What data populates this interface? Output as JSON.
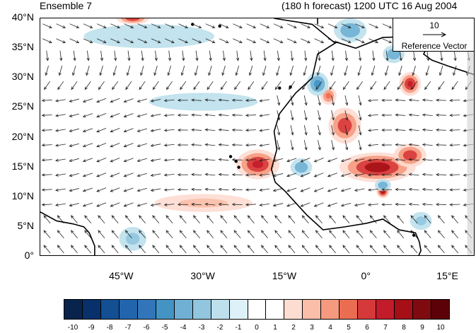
{
  "header": {
    "ensemble": "Ensemble 7",
    "forecast": "(180 h forecast) 1200 UTC 16 Aug 2004"
  },
  "axes": {
    "y_ticks": [
      {
        "label": "40°N",
        "lat": 40
      },
      {
        "label": "35°N",
        "lat": 35
      },
      {
        "label": "30°N",
        "lat": 30
      },
      {
        "label": "25°N",
        "lat": 25
      },
      {
        "label": "20°N",
        "lat": 20
      },
      {
        "label": "15°N",
        "lat": 15
      },
      {
        "label": "10°N",
        "lat": 10
      },
      {
        "label": "5°N",
        "lat": 5
      },
      {
        "label": "0°",
        "lat": 0
      }
    ],
    "x_ticks": [
      {
        "label": "45°W",
        "lon": -45
      },
      {
        "label": "30°W",
        "lon": -30
      },
      {
        "label": "15°W",
        "lon": -15
      },
      {
        "label": "0°",
        "lon": 0
      },
      {
        "label": "15°E",
        "lon": 15
      }
    ],
    "lon_range": [
      -60,
      20
    ],
    "lat_range": [
      0,
      40
    ]
  },
  "reference_vector": {
    "value": "10",
    "label": "Reference Vector"
  },
  "colorbar": {
    "labels": [
      "-10",
      "-9",
      "-8",
      "-7",
      "-6",
      "-5",
      "-4",
      "-3",
      "-2",
      "-1",
      "0",
      "1",
      "2",
      "3",
      "4",
      "5",
      "6",
      "7",
      "8",
      "9",
      "10"
    ],
    "colors": [
      "#08244d",
      "#08306b",
      "#134f93",
      "#2166ac",
      "#3276b9",
      "#4393c3",
      "#6fb0d4",
      "#92c5de",
      "#bde0ec",
      "#def1f8",
      "#ffffff",
      "#ffffff",
      "#fddcd2",
      "#fbbfa9",
      "#f69a7f",
      "#ea6d52",
      "#d6393a",
      "#c21c2a",
      "#a50f15",
      "#7f0b10",
      "#5a0208"
    ]
  },
  "shaded_regions": [
    {
      "lon": -20,
      "lat": 15.5,
      "rx": 4,
      "ry": 2.5,
      "value": 7
    },
    {
      "lon": 2,
      "lat": 15,
      "rx": 7,
      "ry": 2.5,
      "value": 8
    },
    {
      "lon": 8,
      "lat": 17,
      "rx": 3,
      "ry": 2,
      "value": 6
    },
    {
      "lon": -4,
      "lat": 22,
      "rx": 3,
      "ry": 3,
      "value": 6
    },
    {
      "lon": 8,
      "lat": 29,
      "rx": 2,
      "ry": 2,
      "value": 7
    },
    {
      "lon": 3,
      "lat": 11,
      "rx": 1.2,
      "ry": 1.2,
      "value": 8
    },
    {
      "lon": -43,
      "lat": 40,
      "rx": 3,
      "ry": 1,
      "value": 6
    },
    {
      "lon": -7,
      "lat": 27,
      "rx": 1.5,
      "ry": 1.5,
      "value": 5
    },
    {
      "lon": -30,
      "lat": 9,
      "rx": 9,
      "ry": 1.5,
      "value": 3
    },
    {
      "lon": -12,
      "lat": 15,
      "rx": 2,
      "ry": 1.5,
      "value": -4
    },
    {
      "lon": -9,
      "lat": 29,
      "rx": 2,
      "ry": 2,
      "value": -5
    },
    {
      "lon": -3,
      "lat": 38,
      "rx": 3,
      "ry": 2,
      "value": -4
    },
    {
      "lon": 5,
      "lat": 34,
      "rx": 2,
      "ry": 1.5,
      "value": -4
    },
    {
      "lon": 3,
      "lat": 12,
      "rx": 1.5,
      "ry": 1,
      "value": -4
    },
    {
      "lon": -43,
      "lat": 3,
      "rx": 2.5,
      "ry": 2,
      "value": -3
    },
    {
      "lon": -30,
      "lat": 26,
      "rx": 10,
      "ry": 1.5,
      "value": -2
    },
    {
      "lon": -40,
      "lat": 37,
      "rx": 12,
      "ry": 2,
      "value": -2
    },
    {
      "lon": 10,
      "lat": 6,
      "rx": 2,
      "ry": 1.5,
      "value": -3
    }
  ],
  "wind_field": {
    "grid_step_deg": 2.5,
    "regime": "easterly trades with westerlies north of 35N"
  },
  "colors": {
    "coast": "#000000",
    "vector": "#222222",
    "border_land": "#000000"
  }
}
